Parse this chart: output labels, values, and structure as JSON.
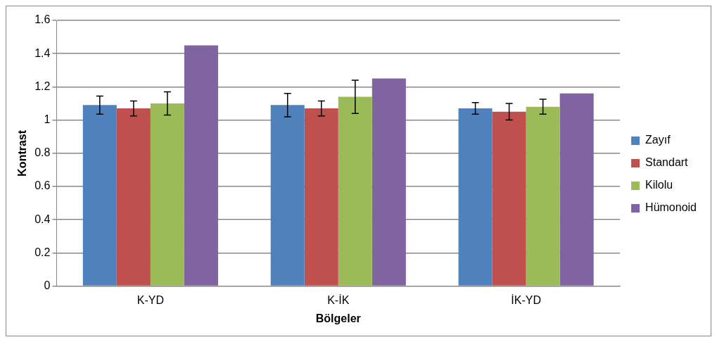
{
  "chart_data": {
    "type": "bar",
    "xlabel": "Bölgeler",
    "ylabel": "Kontrast",
    "categories": [
      "K-YD",
      "K-İK",
      "İK-YD"
    ],
    "series": [
      {
        "name": "Zayıf",
        "color": "#4f81bd",
        "values": [
          1.09,
          1.09,
          1.07
        ],
        "errors": [
          0.055,
          0.07,
          0.035
        ]
      },
      {
        "name": "Standart",
        "color": "#c0504d",
        "values": [
          1.07,
          1.07,
          1.05
        ],
        "errors": [
          0.045,
          0.045,
          0.05
        ]
      },
      {
        "name": "Kilolu",
        "color": "#9bbb59",
        "values": [
          1.1,
          1.14,
          1.08
        ],
        "errors": [
          0.07,
          0.1,
          0.045
        ]
      },
      {
        "name": "Hümonoid",
        "color": "#8064a2",
        "values": [
          1.45,
          1.25,
          1.16
        ]
      }
    ],
    "ylim": [
      0,
      1.6
    ],
    "yticks": [
      0,
      0.2,
      0.4,
      0.6,
      0.8,
      1,
      1.2,
      1.4,
      1.6
    ],
    "grid": "y",
    "legend": "right"
  }
}
